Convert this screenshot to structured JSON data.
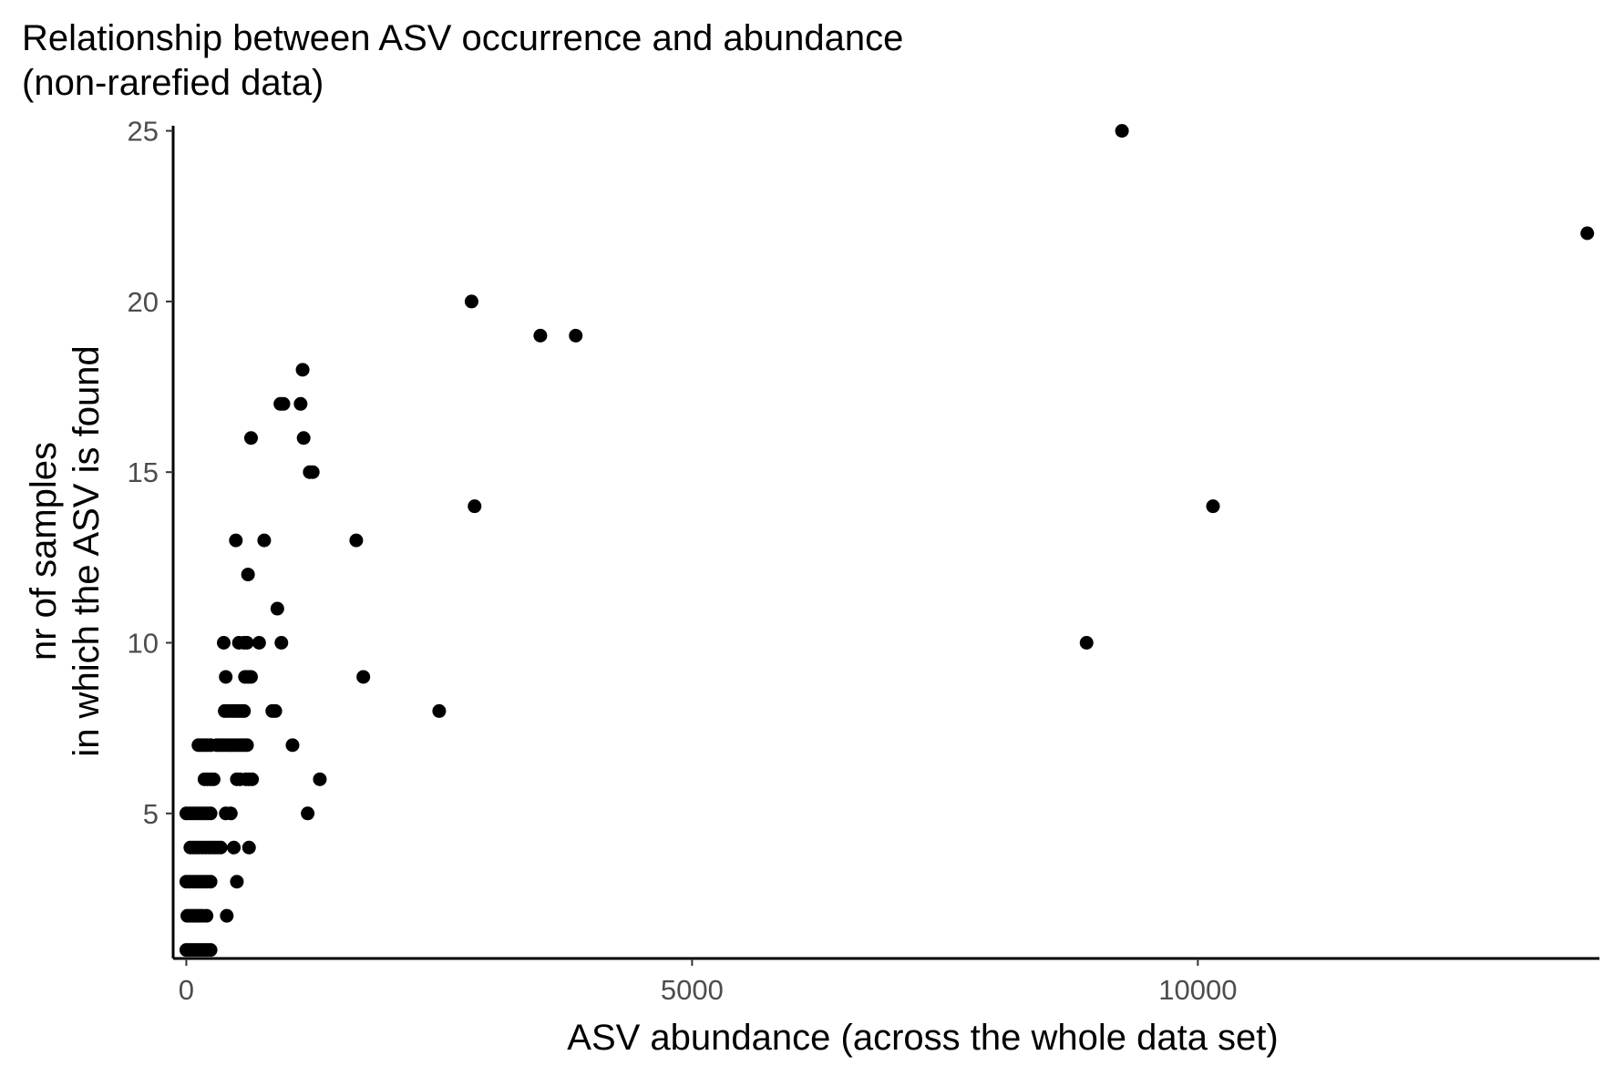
{
  "chart_data": {
    "type": "scatter",
    "title": [
      "Relationship between ASV occurrence and abundance",
      "(non-rarefied data)"
    ],
    "xlabel": "ASV abundance (across the whole data set)",
    "ylabel": [
      "nr of samples",
      "in which the ASV is found"
    ],
    "xlim": [
      -130,
      13970
    ],
    "ylim": [
      0.75,
      25.15
    ],
    "x_ticks": [
      0,
      5000,
      10000
    ],
    "y_ticks": [
      5,
      10,
      15,
      20,
      25
    ],
    "grid": false,
    "point_color": "#000000",
    "points": [
      {
        "x": 0,
        "y": 1
      },
      {
        "x": 30,
        "y": 1
      },
      {
        "x": 60,
        "y": 1
      },
      {
        "x": 90,
        "y": 1
      },
      {
        "x": 120,
        "y": 1
      },
      {
        "x": 150,
        "y": 1
      },
      {
        "x": 180,
        "y": 1
      },
      {
        "x": 210,
        "y": 1
      },
      {
        "x": 240,
        "y": 1
      },
      {
        "x": 10,
        "y": 2
      },
      {
        "x": 40,
        "y": 2
      },
      {
        "x": 70,
        "y": 2
      },
      {
        "x": 100,
        "y": 2
      },
      {
        "x": 130,
        "y": 2
      },
      {
        "x": 160,
        "y": 2
      },
      {
        "x": 200,
        "y": 2
      },
      {
        "x": 400,
        "y": 2
      },
      {
        "x": 0,
        "y": 3
      },
      {
        "x": 30,
        "y": 3
      },
      {
        "x": 60,
        "y": 3
      },
      {
        "x": 90,
        "y": 3
      },
      {
        "x": 120,
        "y": 3
      },
      {
        "x": 150,
        "y": 3
      },
      {
        "x": 180,
        "y": 3
      },
      {
        "x": 210,
        "y": 3
      },
      {
        "x": 240,
        "y": 3
      },
      {
        "x": 500,
        "y": 3
      },
      {
        "x": 40,
        "y": 4
      },
      {
        "x": 70,
        "y": 4
      },
      {
        "x": 100,
        "y": 4
      },
      {
        "x": 130,
        "y": 4
      },
      {
        "x": 160,
        "y": 4
      },
      {
        "x": 190,
        "y": 4
      },
      {
        "x": 220,
        "y": 4
      },
      {
        "x": 250,
        "y": 4
      },
      {
        "x": 280,
        "y": 4
      },
      {
        "x": 310,
        "y": 4
      },
      {
        "x": 340,
        "y": 4
      },
      {
        "x": 470,
        "y": 4
      },
      {
        "x": 620,
        "y": 4
      },
      {
        "x": 0,
        "y": 5
      },
      {
        "x": 30,
        "y": 5
      },
      {
        "x": 60,
        "y": 5
      },
      {
        "x": 90,
        "y": 5
      },
      {
        "x": 120,
        "y": 5
      },
      {
        "x": 150,
        "y": 5
      },
      {
        "x": 180,
        "y": 5
      },
      {
        "x": 210,
        "y": 5
      },
      {
        "x": 240,
        "y": 5
      },
      {
        "x": 390,
        "y": 5
      },
      {
        "x": 440,
        "y": 5
      },
      {
        "x": 1200,
        "y": 5
      },
      {
        "x": 180,
        "y": 6
      },
      {
        "x": 210,
        "y": 6
      },
      {
        "x": 240,
        "y": 6
      },
      {
        "x": 270,
        "y": 6
      },
      {
        "x": 500,
        "y": 6
      },
      {
        "x": 530,
        "y": 6
      },
      {
        "x": 590,
        "y": 6
      },
      {
        "x": 620,
        "y": 6
      },
      {
        "x": 650,
        "y": 6
      },
      {
        "x": 1320,
        "y": 6
      },
      {
        "x": 120,
        "y": 7
      },
      {
        "x": 150,
        "y": 7
      },
      {
        "x": 180,
        "y": 7
      },
      {
        "x": 210,
        "y": 7
      },
      {
        "x": 240,
        "y": 7
      },
      {
        "x": 300,
        "y": 7
      },
      {
        "x": 330,
        "y": 7
      },
      {
        "x": 360,
        "y": 7
      },
      {
        "x": 390,
        "y": 7
      },
      {
        "x": 420,
        "y": 7
      },
      {
        "x": 450,
        "y": 7
      },
      {
        "x": 480,
        "y": 7
      },
      {
        "x": 510,
        "y": 7
      },
      {
        "x": 540,
        "y": 7
      },
      {
        "x": 570,
        "y": 7
      },
      {
        "x": 600,
        "y": 7
      },
      {
        "x": 1050,
        "y": 7
      },
      {
        "x": 380,
        "y": 8
      },
      {
        "x": 410,
        "y": 8
      },
      {
        "x": 450,
        "y": 8
      },
      {
        "x": 480,
        "y": 8
      },
      {
        "x": 510,
        "y": 8
      },
      {
        "x": 540,
        "y": 8
      },
      {
        "x": 570,
        "y": 8
      },
      {
        "x": 850,
        "y": 8
      },
      {
        "x": 880,
        "y": 8
      },
      {
        "x": 2500,
        "y": 8
      },
      {
        "x": 390,
        "y": 9
      },
      {
        "x": 580,
        "y": 9
      },
      {
        "x": 610,
        "y": 9
      },
      {
        "x": 640,
        "y": 9
      },
      {
        "x": 1750,
        "y": 9
      },
      {
        "x": 370,
        "y": 10
      },
      {
        "x": 520,
        "y": 10
      },
      {
        "x": 570,
        "y": 10
      },
      {
        "x": 600,
        "y": 10
      },
      {
        "x": 720,
        "y": 10
      },
      {
        "x": 940,
        "y": 10
      },
      {
        "x": 8900,
        "y": 10
      },
      {
        "x": 900,
        "y": 11
      },
      {
        "x": 610,
        "y": 12
      },
      {
        "x": 490,
        "y": 13
      },
      {
        "x": 770,
        "y": 13
      },
      {
        "x": 1680,
        "y": 13
      },
      {
        "x": 2850,
        "y": 14
      },
      {
        "x": 10150,
        "y": 14
      },
      {
        "x": 1220,
        "y": 15
      },
      {
        "x": 1250,
        "y": 15
      },
      {
        "x": 640,
        "y": 16
      },
      {
        "x": 1160,
        "y": 16
      },
      {
        "x": 930,
        "y": 17
      },
      {
        "x": 960,
        "y": 17
      },
      {
        "x": 1130,
        "y": 17
      },
      {
        "x": 1150,
        "y": 18
      },
      {
        "x": 3500,
        "y": 19
      },
      {
        "x": 3850,
        "y": 19
      },
      {
        "x": 2820,
        "y": 20
      },
      {
        "x": 13850,
        "y": 22
      },
      {
        "x": 9250,
        "y": 25
      }
    ]
  }
}
